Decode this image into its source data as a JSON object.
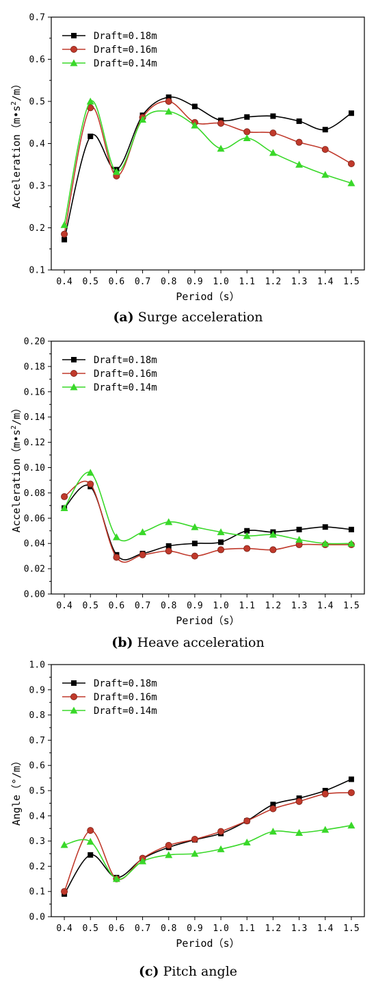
{
  "chart_data": [
    {
      "panel": "a",
      "type": "line",
      "caption_letter": "(a)",
      "caption_text": "Surge acceleration",
      "xlabel": "Period（s）",
      "ylabel_prefix": "Acceleration（m•s",
      "ylabel_sup": "2",
      "ylabel_suffix": "/m）",
      "x": [
        0.4,
        0.5,
        0.6,
        0.7,
        0.8,
        0.9,
        1.0,
        1.1,
        1.2,
        1.3,
        1.4,
        1.5
      ],
      "xlim": [
        0.35,
        1.55
      ],
      "ylim": [
        0.1,
        0.7
      ],
      "yticks": [
        "0.1",
        "0.2",
        "0.3",
        "0.4",
        "0.5",
        "0.6",
        "0.7"
      ],
      "xticks": [
        "0.4",
        "0.5",
        "0.6",
        "0.7",
        "0.8",
        "0.9",
        "1.0",
        "1.1",
        "1.2",
        "1.3",
        "1.4",
        "1.5"
      ],
      "legend_position": "top-left",
      "series": [
        {
          "name": "Draft=0.18m",
          "color": "#000000",
          "marker": "square",
          "values": [
            0.172,
            0.417,
            0.338,
            0.467,
            0.51,
            0.488,
            0.455,
            0.463,
            0.465,
            0.453,
            0.433,
            0.472
          ]
        },
        {
          "name": "Draft=0.16m",
          "color": "#c0392b",
          "marker": "circle",
          "values": [
            0.185,
            0.485,
            0.323,
            0.462,
            0.5,
            0.45,
            0.448,
            0.428,
            0.425,
            0.403,
            0.386,
            0.352
          ]
        },
        {
          "name": "Draft=0.14m",
          "color": "#39d829",
          "marker": "triangle",
          "values": [
            0.207,
            0.5,
            0.333,
            0.457,
            0.476,
            0.443,
            0.388,
            0.413,
            0.378,
            0.35,
            0.326,
            0.306
          ]
        }
      ]
    },
    {
      "panel": "b",
      "type": "line",
      "caption_letter": "(b)",
      "caption_text": "Heave acceleration",
      "xlabel": "Period（s）",
      "ylabel_prefix": "Acceleration（m•s",
      "ylabel_sup": "2",
      "ylabel_suffix": "/m）",
      "x": [
        0.4,
        0.5,
        0.6,
        0.7,
        0.8,
        0.9,
        1.0,
        1.1,
        1.2,
        1.3,
        1.4,
        1.5
      ],
      "xlim": [
        0.35,
        1.55
      ],
      "ylim": [
        0.0,
        0.2
      ],
      "yticks": [
        "0.00",
        "0.02",
        "0.04",
        "0.06",
        "0.08",
        "0.10",
        "0.12",
        "0.14",
        "0.16",
        "0.18",
        "0.20"
      ],
      "xticks": [
        "0.4",
        "0.5",
        "0.6",
        "0.7",
        "0.8",
        "0.9",
        "1.0",
        "1.1",
        "1.2",
        "1.3",
        "1.4",
        "1.5"
      ],
      "legend_position": "top-left",
      "series": [
        {
          "name": "Draft=0.18m",
          "color": "#000000",
          "marker": "square",
          "values": [
            0.068,
            0.085,
            0.031,
            0.032,
            0.038,
            0.04,
            0.041,
            0.05,
            0.049,
            0.051,
            0.053,
            0.051
          ]
        },
        {
          "name": "Draft=0.16m",
          "color": "#c0392b",
          "marker": "circle",
          "values": [
            0.077,
            0.087,
            0.029,
            0.031,
            0.034,
            0.03,
            0.035,
            0.036,
            0.035,
            0.039,
            0.039,
            0.039
          ]
        },
        {
          "name": "Draft=0.14m",
          "color": "#39d829",
          "marker": "triangle",
          "values": [
            0.068,
            0.096,
            0.045,
            0.049,
            0.057,
            0.053,
            0.049,
            0.046,
            0.047,
            0.043,
            0.04,
            0.04
          ]
        }
      ]
    },
    {
      "panel": "c",
      "type": "line",
      "caption_letter": "(c)",
      "caption_text": "Pitch angle",
      "xlabel": "Period（s）",
      "ylabel_prefix": "Angle（°/m）",
      "ylabel_sup": "",
      "ylabel_suffix": "",
      "x": [
        0.4,
        0.5,
        0.6,
        0.7,
        0.8,
        0.9,
        1.0,
        1.1,
        1.2,
        1.3,
        1.4,
        1.5
      ],
      "xlim": [
        0.35,
        1.55
      ],
      "ylim": [
        0.0,
        1.0
      ],
      "yticks": [
        "0.0",
        "0.1",
        "0.2",
        "0.3",
        "0.4",
        "0.5",
        "0.6",
        "0.7",
        "0.8",
        "0.9",
        "1.0"
      ],
      "xticks": [
        "0.4",
        "0.5",
        "0.6",
        "0.7",
        "0.8",
        "0.9",
        "1.0",
        "1.1",
        "1.2",
        "1.3",
        "1.4",
        "1.5"
      ],
      "legend_position": "top-left",
      "series": [
        {
          "name": "Draft=0.18m",
          "color": "#000000",
          "marker": "square",
          "values": [
            0.09,
            0.245,
            0.155,
            0.23,
            0.275,
            0.305,
            0.33,
            0.38,
            0.445,
            0.47,
            0.5,
            0.545
          ]
        },
        {
          "name": "Draft=0.16m",
          "color": "#c0392b",
          "marker": "circle",
          "values": [
            0.1,
            0.342,
            0.15,
            0.232,
            0.283,
            0.307,
            0.338,
            0.38,
            0.428,
            0.457,
            0.487,
            0.492
          ]
        },
        {
          "name": "Draft=0.14m",
          "color": "#39d829",
          "marker": "triangle",
          "values": [
            0.285,
            0.298,
            0.15,
            0.22,
            0.245,
            0.25,
            0.268,
            0.295,
            0.338,
            0.333,
            0.345,
            0.362
          ]
        }
      ]
    }
  ]
}
